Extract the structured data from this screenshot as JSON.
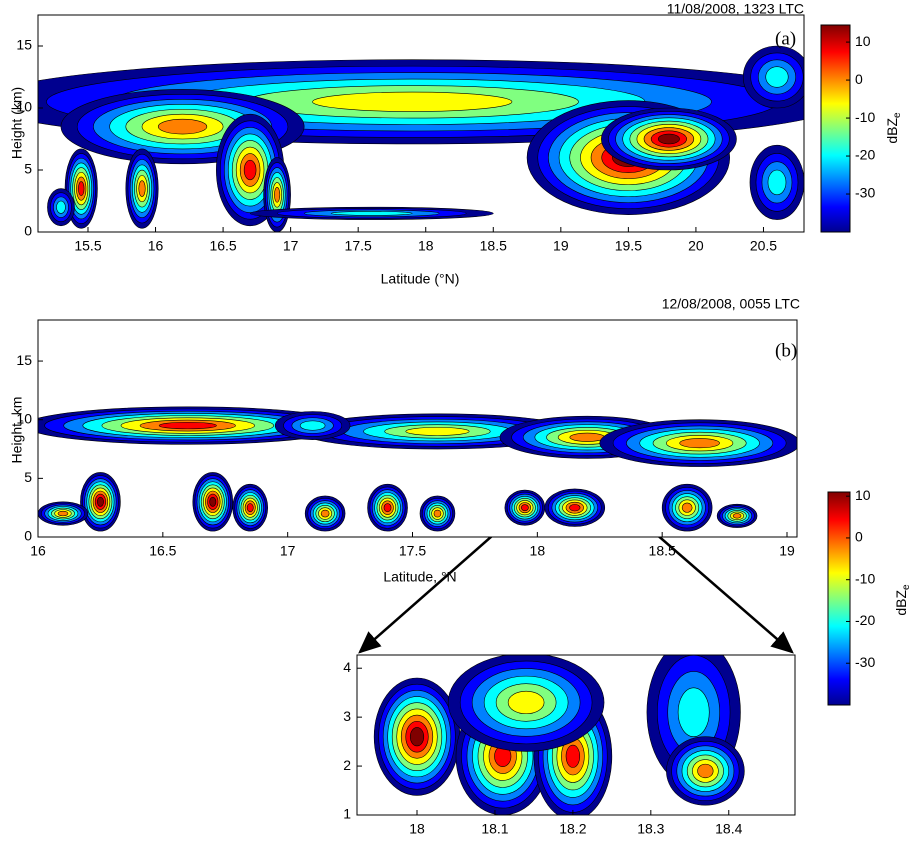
{
  "chart_data": [
    {
      "type": "contour",
      "title": "11/08/2008, 1323 LTC",
      "annotation": "(a)",
      "x_label": "Latitude (°N)",
      "y_label": "Height (km)",
      "xlim": [
        15.13,
        20.8
      ],
      "xticks": [
        15.5,
        16,
        16.5,
        17,
        17.5,
        18,
        18.5,
        19,
        19.5,
        20,
        20.5
      ],
      "ylim": [
        0,
        17.5
      ],
      "yticks": [
        0,
        5,
        10,
        15
      ],
      "colorbar": {
        "label": "dBZ",
        "label_sub": "e",
        "lim": [
          -40,
          14.5
        ],
        "ticks": [
          -30,
          -20,
          -10,
          0,
          10
        ]
      }
    },
    {
      "type": "contour",
      "title": "12/08/2008, 0055 LTC",
      "annotation": "(b)",
      "x_label": "Latitude, °N",
      "y_label": "Height, km",
      "xlim": [
        16,
        19.04
      ],
      "xticks": [
        16,
        16.5,
        17,
        17.5,
        18,
        18.5,
        19
      ],
      "ylim": [
        0,
        18.5
      ],
      "yticks": [
        0,
        5,
        10,
        15
      ],
      "colorbar": {
        "label": "dBZ",
        "label_sub": "e",
        "lim": [
          -40,
          11
        ],
        "ticks": [
          -30,
          -20,
          -10,
          0,
          10
        ]
      }
    },
    {
      "type": "contour",
      "xlim": [
        17.923,
        18.485
      ],
      "xticks": [
        18,
        18.1,
        18.2,
        18.3,
        18.4
      ],
      "ylim": [
        1,
        4.27
      ],
      "yticks": [
        1,
        2,
        3,
        4
      ]
    }
  ]
}
